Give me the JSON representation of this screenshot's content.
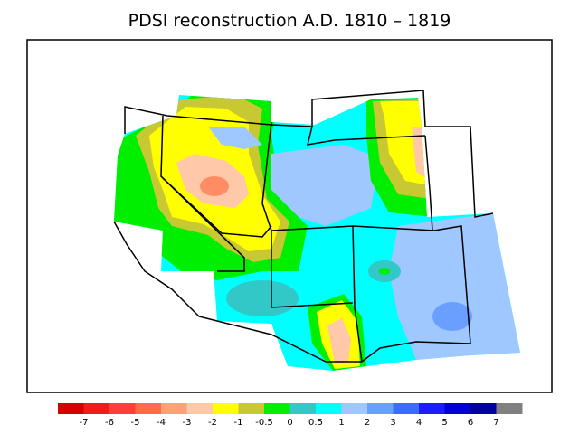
{
  "title": "PDSI reconstruction A.D. 1810 – 1819",
  "legend": {
    "colors": [
      "#d30000",
      "#ee1c1c",
      "#ff3d3d",
      "#ff6a4a",
      "#ffa07a",
      "#ffc8a8",
      "#ffff00",
      "#c8c832",
      "#00ee00",
      "#32c8c8",
      "#00ffff",
      "#9ec8ff",
      "#6a9eff",
      "#3d6aff",
      "#1c1cff",
      "#0000d3",
      "#0000a0",
      "#808080"
    ],
    "labels": [
      "-7",
      "-6",
      "-5",
      "-4",
      "-3",
      "-2",
      "-1",
      "-0.5",
      "0",
      "0.5",
      "1",
      "2",
      "3",
      "4",
      "5",
      "6",
      "7"
    ]
  },
  "chart_data": {
    "type": "heatmap",
    "title": "PDSI reconstruction A.D. 1810 – 1819",
    "variable": "PDSI",
    "period": "A.D. 1810 – 1819",
    "levels": [
      -7,
      -6,
      -5,
      -4,
      -3,
      -2,
      -1,
      -0.5,
      0,
      0.5,
      1,
      2,
      3,
      4,
      5,
      6,
      7
    ],
    "region": "Western United States"
  }
}
